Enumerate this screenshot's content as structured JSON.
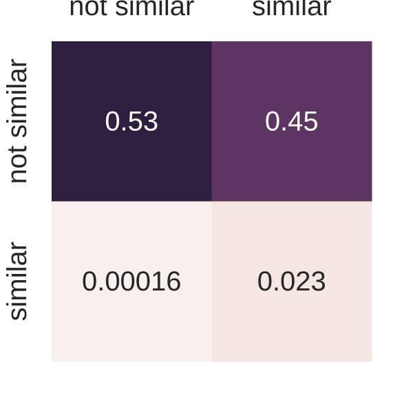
{
  "chart_data": {
    "type": "heatmap",
    "title": "",
    "xlabel": "",
    "ylabel": "",
    "x_categories": [
      "not similar",
      "similar"
    ],
    "y_categories": [
      "not similar",
      "similar"
    ],
    "values": [
      [
        0.53,
        0.45
      ],
      [
        0.00016,
        0.023
      ]
    ],
    "cell_labels": [
      [
        "0.53",
        "0.45"
      ],
      [
        "0.00016",
        "0.023"
      ]
    ],
    "cell_colors": [
      [
        "#2e1f3f",
        "#5c3562"
      ],
      [
        "#f8f0ec",
        "#f4e6e0"
      ]
    ],
    "label_colors": [
      [
        "#ffffff",
        "#ffffff"
      ],
      [
        "#262626",
        "#262626"
      ]
    ],
    "x_tick_position": "top",
    "colorbar": false,
    "grid": false,
    "legend": "none"
  }
}
